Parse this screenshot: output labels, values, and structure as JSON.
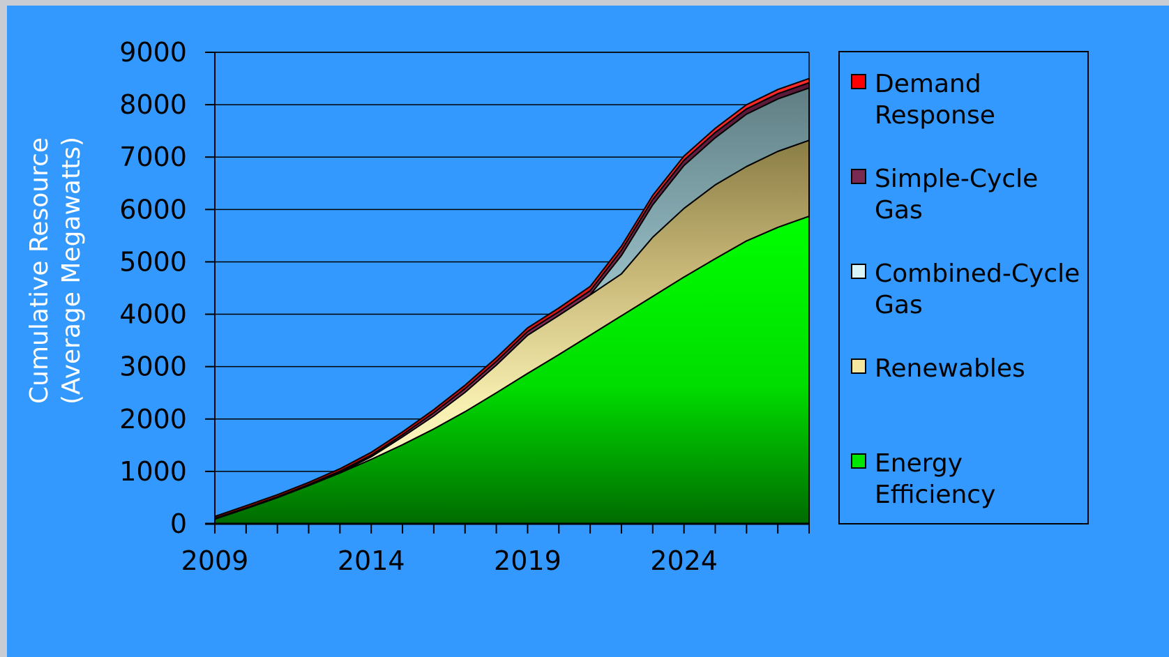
{
  "chart_data": {
    "type": "area",
    "stacked": true,
    "ylabel_lines": [
      "Cumulative Resource",
      "(Average Megawatts)"
    ],
    "ylim": [
      0,
      9000
    ],
    "yticks": [
      0,
      1000,
      2000,
      3000,
      4000,
      5000,
      6000,
      7000,
      8000,
      9000
    ],
    "xlim": [
      2009,
      2028
    ],
    "xtick_labels": [
      2009,
      2014,
      2019,
      2024
    ],
    "x": [
      2009,
      2010,
      2011,
      2012,
      2013,
      2014,
      2015,
      2016,
      2017,
      2018,
      2019,
      2020,
      2021,
      2022,
      2023,
      2024,
      2025,
      2026,
      2027,
      2028
    ],
    "grid": true,
    "legend_position": "right",
    "series": [
      {
        "name": "Energy Efficiency",
        "color": "#00e600",
        "values": [
          90,
          290,
          500,
          730,
          970,
          1230,
          1510,
          1810,
          2140,
          2500,
          2870,
          3230,
          3600,
          3970,
          4340,
          4710,
          5060,
          5400,
          5660,
          5870
        ]
      },
      {
        "name": "Renewables",
        "color": "#f2eaa8",
        "values": [
          0,
          0,
          0,
          0,
          10,
          50,
          150,
          250,
          370,
          530,
          730,
          750,
          770,
          800,
          1130,
          1310,
          1410,
          1420,
          1450,
          1450
        ]
      },
      {
        "name": "Combined-Cycle Gas",
        "color": "#c6ecf0",
        "values": [
          0,
          0,
          0,
          0,
          0,
          0,
          0,
          0,
          0,
          0,
          0,
          0,
          0,
          350,
          620,
          820,
          900,
          1000,
          1000,
          1000
        ]
      },
      {
        "name": "Simple-Cycle Gas",
        "color": "#7a2a50",
        "values": [
          15,
          15,
          15,
          20,
          25,
          30,
          40,
          60,
          70,
          70,
          70,
          70,
          80,
          100,
          100,
          100,
          100,
          100,
          100,
          100
        ]
      },
      {
        "name": "Demand Response",
        "color": "#e60000",
        "values": [
          35,
          40,
          40,
          40,
          45,
          55,
          55,
          60,
          65,
          70,
          70,
          70,
          80,
          80,
          80,
          80,
          80,
          80,
          80,
          80
        ]
      }
    ],
    "legend_entries": [
      {
        "lines": [
          "Demand",
          "Response"
        ],
        "color": "#ff0000"
      },
      {
        "lines": [
          "Simple-Cycle",
          "Gas"
        ],
        "color": "#7a2a50"
      },
      {
        "lines": [
          "Combined-Cycle",
          "Gas"
        ],
        "color": "#d8f4f6"
      },
      {
        "lines": [
          "Renewables"
        ],
        "color": "#f5e6a0"
      },
      {
        "lines": [
          "Energy",
          "Efficiency"
        ],
        "color": "#00e600"
      }
    ]
  }
}
